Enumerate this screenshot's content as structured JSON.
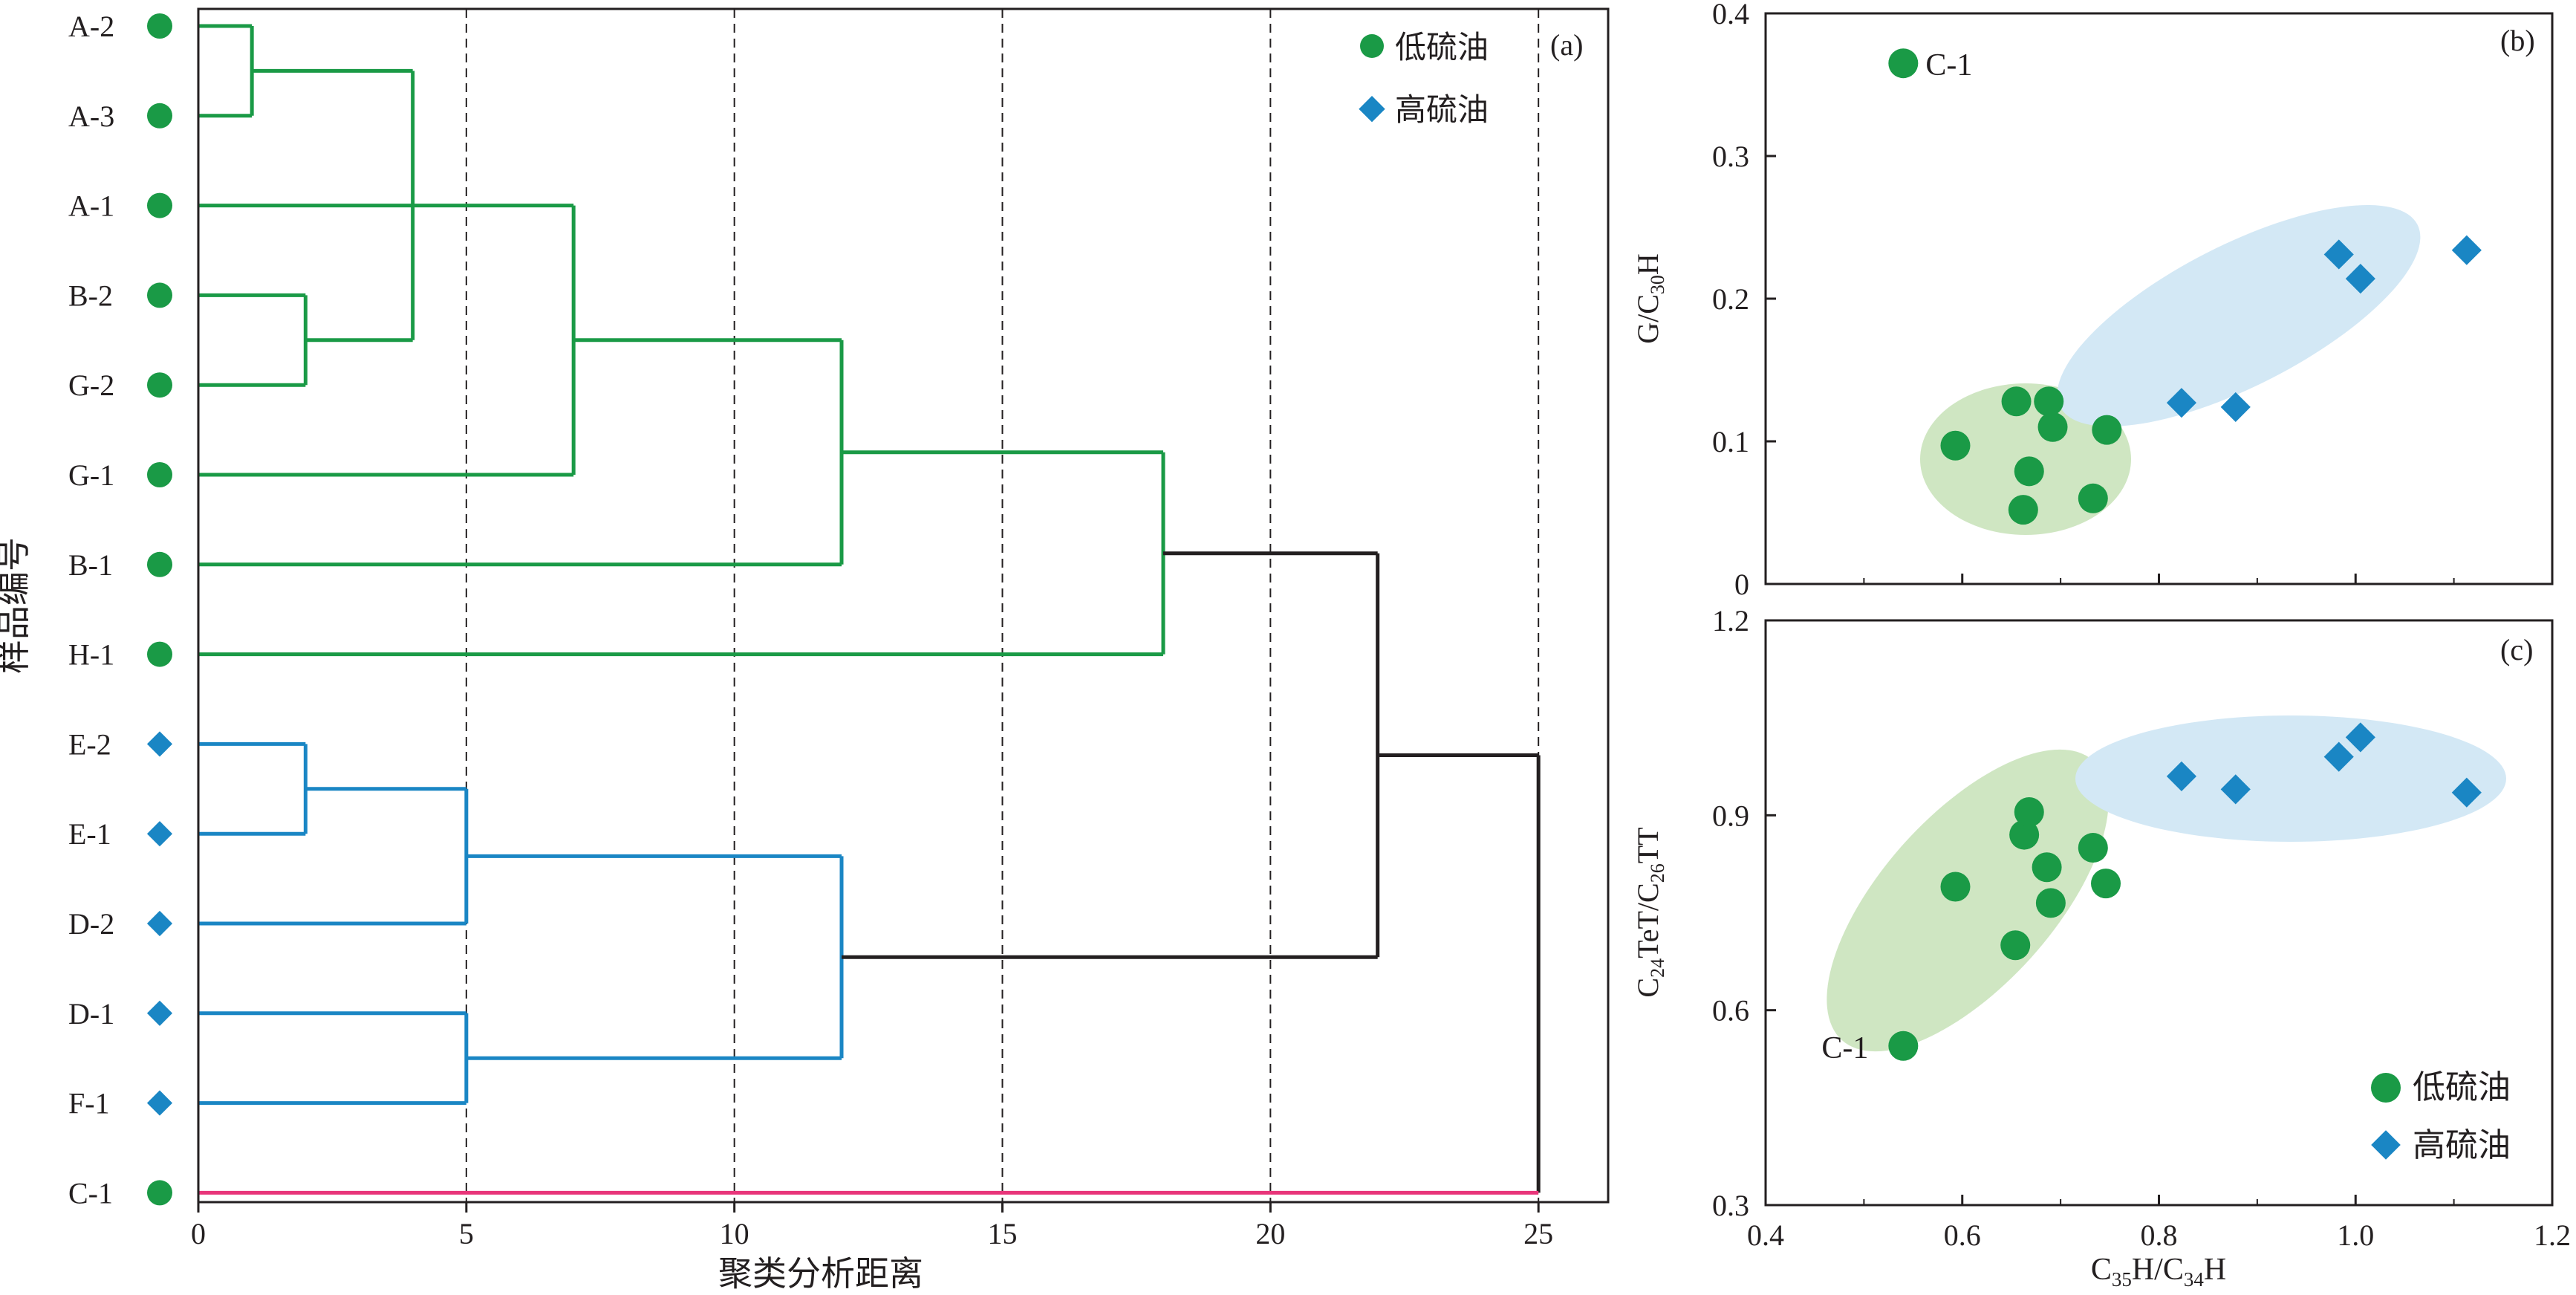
{
  "colors": {
    "low_sulfur": "#1a9a46",
    "high_sulfur": "#1a86c4",
    "c1_line": "#e8357a",
    "root": "#231f20",
    "low_ellipse": "#cfe6c2",
    "high_ellipse": "#d3e8f5"
  },
  "legend": {
    "low_sulfur": "低硫油",
    "high_sulfur": "高硫油"
  },
  "chart_data": [
    {
      "type": "dendrogram",
      "panel_label": "(a)",
      "xlabel": "聚类分析距离",
      "ylabel": "样品编号",
      "xlim": [
        0,
        26.3
      ],
      "xticks": [
        0,
        5,
        10,
        15,
        20,
        25
      ],
      "reference_lines_x": [
        5,
        10,
        15,
        20,
        25
      ],
      "samples": [
        {
          "name": "A-2",
          "group": "low"
        },
        {
          "name": "A-3",
          "group": "low"
        },
        {
          "name": "A-1",
          "group": "low"
        },
        {
          "name": "B-2",
          "group": "low"
        },
        {
          "name": "G-2",
          "group": "low"
        },
        {
          "name": "G-1",
          "group": "low"
        },
        {
          "name": "B-1",
          "group": "low"
        },
        {
          "name": "H-1",
          "group": "low"
        },
        {
          "name": "E-2",
          "group": "high"
        },
        {
          "name": "E-1",
          "group": "high"
        },
        {
          "name": "D-2",
          "group": "high"
        },
        {
          "name": "D-1",
          "group": "high"
        },
        {
          "name": "F-1",
          "group": "high"
        },
        {
          "name": "C-1",
          "group": "low"
        }
      ],
      "merges": [
        {
          "id": "n1",
          "left": "A-2",
          "right": "A-3",
          "height": 1,
          "group": "low"
        },
        {
          "id": "n2",
          "left": "B-2",
          "right": "G-2",
          "height": 2,
          "group": "low"
        },
        {
          "id": "n3",
          "left": "n1",
          "right": "n2",
          "height": 4,
          "group": "low"
        },
        {
          "id": "n4",
          "left": "A-1",
          "right": "G-1",
          "height": 7,
          "group": "low"
        },
        {
          "id": "n5",
          "left": "n4",
          "right": "B-1",
          "height": 12,
          "group": "low"
        },
        {
          "id": "n6",
          "left": "n5",
          "right": "H-1",
          "height": 18,
          "group": "low"
        },
        {
          "id": "n7",
          "left": "E-2",
          "right": "E-1",
          "height": 2,
          "group": "high"
        },
        {
          "id": "n8",
          "left": "n7",
          "right": "D-2",
          "height": 5,
          "group": "high"
        },
        {
          "id": "n9",
          "left": "D-1",
          "right": "F-1",
          "height": 5,
          "group": "high"
        },
        {
          "id": "n10",
          "left": "n8",
          "right": "n9",
          "height": 12,
          "group": "high"
        },
        {
          "id": "n11",
          "left": "n6",
          "right": "n10",
          "height": 22,
          "group": "root"
        },
        {
          "id": "n12",
          "left": "n11",
          "right": "C-1",
          "height": 25,
          "group": "root"
        }
      ]
    },
    {
      "type": "scatter",
      "panel_label": "(b)",
      "xlabel": "C35H/C34H",
      "ylabel": "G/C30H",
      "xlim": [
        0.4,
        1.2
      ],
      "ylim": [
        0,
        0.4
      ],
      "xticks": [
        0.4,
        0.6,
        0.8,
        1.0,
        1.2
      ],
      "yticks": [
        0,
        0.1,
        0.2,
        0.3,
        0.4
      ],
      "point_label": {
        "text": "C-1",
        "x": 0.54,
        "y": 0.365
      },
      "series": [
        {
          "name": "低硫油",
          "group": "low",
          "x": [
            0.54,
            0.593,
            0.655,
            0.688,
            0.692,
            0.747,
            0.668,
            0.733,
            0.662
          ],
          "y": [
            0.365,
            0.097,
            0.128,
            0.128,
            0.11,
            0.108,
            0.079,
            0.06,
            0.052
          ]
        },
        {
          "name": "高硫油",
          "group": "high",
          "x": [
            0.823,
            0.878,
            0.983,
            1.005,
            1.113
          ],
          "y": [
            0.127,
            0.124,
            0.231,
            0.214,
            0.234
          ]
        }
      ]
    },
    {
      "type": "scatter",
      "panel_label": "(c)",
      "xlabel": "C35H/C34H",
      "ylabel": "C24TeT/C26TT",
      "xlim": [
        0.4,
        1.2
      ],
      "ylim": [
        0.3,
        1.2
      ],
      "xticks": [
        0.4,
        0.6,
        0.8,
        1.0,
        1.2
      ],
      "yticks": [
        0.3,
        0.6,
        0.9,
        1.2
      ],
      "point_label": {
        "text": "C-1",
        "x": 0.54,
        "y": 0.545
      },
      "series": [
        {
          "name": "低硫油",
          "group": "low",
          "x": [
            0.54,
            0.593,
            0.654,
            0.663,
            0.668,
            0.686,
            0.69,
            0.733,
            0.746
          ],
          "y": [
            0.545,
            0.79,
            0.7,
            0.87,
            0.905,
            0.82,
            0.765,
            0.85,
            0.795
          ]
        },
        {
          "name": "高硫油",
          "group": "high",
          "x": [
            0.823,
            0.878,
            0.983,
            1.005,
            1.113
          ],
          "y": [
            0.96,
            0.94,
            0.99,
            1.02,
            0.935
          ]
        }
      ],
      "legend_entries": [
        "低硫油",
        "高硫油"
      ]
    }
  ]
}
